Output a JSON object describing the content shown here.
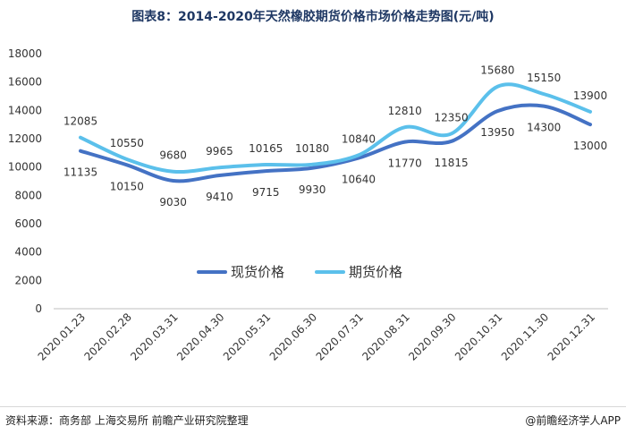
{
  "chart_data": {
    "type": "line",
    "title": "图表8：2014-2020年天然橡胶期货价格市场价格走势图(元/吨)",
    "categories": [
      "2020.01.23",
      "2020.02.28",
      "2020.03.31",
      "2020.04.30",
      "2020.05.31",
      "2020.06.30",
      "2020.07.31",
      "2020.08.31",
      "2020.09.30",
      "2020.10.31",
      "2020.11.30",
      "2020.12.31"
    ],
    "series": [
      {
        "name": "现货价格",
        "color": "#4472c4",
        "values": [
          11135,
          10150,
          9030,
          9410,
          9715,
          9930,
          10640,
          11770,
          11815,
          13950,
          14300,
          13000
        ]
      },
      {
        "name": "期货价格",
        "color": "#5bc0eb",
        "values": [
          12085,
          10550,
          9680,
          9965,
          10165,
          10180,
          10840,
          12810,
          12350,
          15680,
          15150,
          13900
        ]
      }
    ],
    "yticks": [
      0,
      2000,
      4000,
      6000,
      8000,
      10000,
      12000,
      14000,
      16000,
      18000
    ],
    "ylim": [
      0,
      18000
    ],
    "grid": false,
    "legend_position": "center"
  },
  "footer": {
    "source": "资料来源：商务部 上海交易所 前瞻产业研究院整理",
    "brand": "@前瞻经济学人APP"
  }
}
